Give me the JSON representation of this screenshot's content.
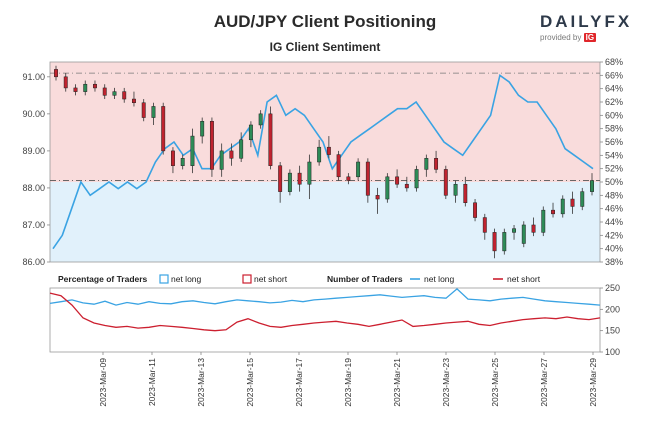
{
  "header": {
    "title": "AUD/JPY Client Positioning",
    "subtitle": "IG Client Sentiment",
    "brand": "DAILYFX",
    "brand_tagline": "provided by",
    "brand_ig": "IG"
  },
  "colors": {
    "net_long": "#3aa3e3",
    "net_short": "#cc1f2f",
    "long_fill": "#e1f1fb",
    "short_fill": "#f9dcdc",
    "candle_up": "#2e8b57",
    "candle_down": "#c0232f"
  },
  "chart_data": [
    {
      "type": "candlestick+line",
      "title": "AUD/JPY Client Positioning",
      "subtitle": "IG Client Sentiment",
      "price_axis": {
        "side": "left",
        "ylim": [
          86.0,
          91.4
        ],
        "ticks": [
          "86.00",
          "87.00",
          "88.00",
          "89.00",
          "90.00",
          "91.00"
        ]
      },
      "sentiment_axis": {
        "side": "right",
        "ylim": [
          38,
          68
        ],
        "ticks": [
          "38%",
          "40%",
          "42%",
          "44%",
          "46%",
          "48%",
          "50%",
          "52%",
          "54%",
          "56%",
          "58%",
          "60%",
          "62%",
          "64%",
          "66%",
          "68%"
        ]
      },
      "reference_lines": {
        "price_high": 91.1,
        "price_current": 88.2
      },
      "candles": [
        {
          "o": 91.2,
          "h": 91.3,
          "l": 90.9,
          "c": 91.0
        },
        {
          "o": 91.0,
          "h": 91.1,
          "l": 90.6,
          "c": 90.7
        },
        {
          "o": 90.7,
          "h": 90.8,
          "l": 90.5,
          "c": 90.6
        },
        {
          "o": 90.6,
          "h": 90.9,
          "l": 90.5,
          "c": 90.8
        },
        {
          "o": 90.8,
          "h": 90.9,
          "l": 90.6,
          "c": 90.7
        },
        {
          "o": 90.7,
          "h": 90.8,
          "l": 90.4,
          "c": 90.5
        },
        {
          "o": 90.5,
          "h": 90.7,
          "l": 90.4,
          "c": 90.6
        },
        {
          "o": 90.6,
          "h": 90.7,
          "l": 90.3,
          "c": 90.4
        },
        {
          "o": 90.4,
          "h": 90.6,
          "l": 90.2,
          "c": 90.3
        },
        {
          "o": 90.3,
          "h": 90.4,
          "l": 89.8,
          "c": 89.9
        },
        {
          "o": 89.9,
          "h": 90.3,
          "l": 89.7,
          "c": 90.2
        },
        {
          "o": 90.2,
          "h": 90.3,
          "l": 88.9,
          "c": 89.0
        },
        {
          "o": 89.0,
          "h": 89.1,
          "l": 88.4,
          "c": 88.6
        },
        {
          "o": 88.6,
          "h": 88.9,
          "l": 88.5,
          "c": 88.8
        },
        {
          "o": 88.6,
          "h": 89.6,
          "l": 88.4,
          "c": 89.4
        },
        {
          "o": 89.4,
          "h": 89.9,
          "l": 89.2,
          "c": 89.8
        },
        {
          "o": 89.8,
          "h": 89.9,
          "l": 88.3,
          "c": 88.5
        },
        {
          "o": 88.5,
          "h": 89.2,
          "l": 88.3,
          "c": 89.0
        },
        {
          "o": 89.0,
          "h": 89.2,
          "l": 88.6,
          "c": 88.8
        },
        {
          "o": 88.8,
          "h": 89.5,
          "l": 88.7,
          "c": 89.3
        },
        {
          "o": 89.3,
          "h": 89.8,
          "l": 89.1,
          "c": 89.7
        },
        {
          "o": 89.7,
          "h": 90.1,
          "l": 89.6,
          "c": 90.0
        },
        {
          "o": 90.0,
          "h": 90.2,
          "l": 88.5,
          "c": 88.6
        },
        {
          "o": 88.6,
          "h": 88.7,
          "l": 87.6,
          "c": 87.9
        },
        {
          "o": 87.9,
          "h": 88.5,
          "l": 87.8,
          "c": 88.4
        },
        {
          "o": 88.4,
          "h": 88.6,
          "l": 87.9,
          "c": 88.1
        },
        {
          "o": 88.1,
          "h": 88.9,
          "l": 87.7,
          "c": 88.7
        },
        {
          "o": 88.7,
          "h": 89.3,
          "l": 88.6,
          "c": 89.1
        },
        {
          "o": 89.1,
          "h": 89.4,
          "l": 88.8,
          "c": 88.9
        },
        {
          "o": 88.9,
          "h": 89.0,
          "l": 88.2,
          "c": 88.3
        },
        {
          "o": 88.3,
          "h": 88.4,
          "l": 88.1,
          "c": 88.2
        },
        {
          "o": 88.3,
          "h": 88.8,
          "l": 88.2,
          "c": 88.7
        },
        {
          "o": 88.7,
          "h": 88.8,
          "l": 87.6,
          "c": 87.8
        },
        {
          "o": 87.8,
          "h": 88.0,
          "l": 87.3,
          "c": 87.7
        },
        {
          "o": 87.7,
          "h": 88.4,
          "l": 87.6,
          "c": 88.3
        },
        {
          "o": 88.3,
          "h": 88.5,
          "l": 88.0,
          "c": 88.1
        },
        {
          "o": 88.1,
          "h": 88.3,
          "l": 87.9,
          "c": 88.0
        },
        {
          "o": 88.0,
          "h": 88.6,
          "l": 87.9,
          "c": 88.5
        },
        {
          "o": 88.5,
          "h": 88.9,
          "l": 88.3,
          "c": 88.8
        },
        {
          "o": 88.8,
          "h": 89.0,
          "l": 88.4,
          "c": 88.5
        },
        {
          "o": 88.5,
          "h": 88.6,
          "l": 87.7,
          "c": 87.8
        },
        {
          "o": 87.8,
          "h": 88.2,
          "l": 87.6,
          "c": 88.1
        },
        {
          "o": 88.1,
          "h": 88.3,
          "l": 87.5,
          "c": 87.6
        },
        {
          "o": 87.6,
          "h": 87.7,
          "l": 87.1,
          "c": 87.2
        },
        {
          "o": 87.2,
          "h": 87.3,
          "l": 86.6,
          "c": 86.8
        },
        {
          "o": 86.8,
          "h": 86.9,
          "l": 86.1,
          "c": 86.3
        },
        {
          "o": 86.3,
          "h": 86.9,
          "l": 86.2,
          "c": 86.8
        },
        {
          "o": 86.8,
          "h": 87.0,
          "l": 86.6,
          "c": 86.9
        },
        {
          "o": 86.5,
          "h": 87.1,
          "l": 86.4,
          "c": 87.0
        },
        {
          "o": 87.0,
          "h": 87.2,
          "l": 86.7,
          "c": 86.8
        },
        {
          "o": 86.8,
          "h": 87.5,
          "l": 86.7,
          "c": 87.4
        },
        {
          "o": 87.4,
          "h": 87.6,
          "l": 87.2,
          "c": 87.3
        },
        {
          "o": 87.3,
          "h": 87.8,
          "l": 87.2,
          "c": 87.7
        },
        {
          "o": 87.7,
          "h": 87.9,
          "l": 87.3,
          "c": 87.5
        },
        {
          "o": 87.5,
          "h": 88.0,
          "l": 87.4,
          "c": 87.9
        },
        {
          "o": 87.9,
          "h": 88.4,
          "l": 87.8,
          "c": 88.2
        }
      ],
      "net_long_pct": [
        40,
        42,
        46,
        50,
        48,
        49,
        50,
        49,
        50,
        49,
        50,
        53,
        55,
        56,
        54,
        55,
        52,
        52,
        54,
        55,
        56,
        58,
        54,
        62,
        63,
        60,
        61,
        60,
        58,
        56,
        52,
        54,
        56,
        57,
        58,
        59,
        60,
        61,
        61,
        62,
        60,
        58,
        56,
        55,
        54,
        56,
        58,
        60,
        66,
        65,
        63,
        62,
        62,
        60,
        58,
        55,
        54,
        53,
        52
      ]
    },
    {
      "type": "line",
      "series": [
        {
          "name": "net long",
          "values": [
            214,
            218,
            222,
            215,
            212,
            219,
            210,
            216,
            212,
            218,
            214,
            213,
            218,
            220,
            216,
            213,
            218,
            222,
            220,
            218,
            215,
            217,
            221,
            218,
            222,
            224,
            226,
            228,
            230,
            232,
            234,
            231,
            228,
            230,
            232,
            228,
            226,
            248,
            224,
            222,
            220,
            224,
            226,
            228,
            224,
            220,
            218,
            216,
            214,
            212,
            210
          ]
        },
        {
          "name": "net short",
          "values": [
            238,
            232,
            210,
            180,
            168,
            162,
            158,
            160,
            156,
            158,
            162,
            160,
            158,
            155,
            152,
            150,
            152,
            170,
            178,
            168,
            160,
            158,
            162,
            165,
            168,
            170,
            172,
            168,
            165,
            160,
            165,
            170,
            175,
            160,
            162,
            165,
            168,
            170,
            172,
            165,
            162,
            168,
            172,
            176,
            178,
            180,
            178,
            182,
            178,
            176,
            180
          ]
        }
      ],
      "ylim": [
        100,
        250
      ],
      "ticks": [
        "100",
        "150",
        "200",
        "250"
      ]
    }
  ],
  "lower_legend": {
    "pct_title": "Percentage of Traders",
    "net_long": "net long",
    "net_short": "net short",
    "num_title": "Number of Traders",
    "num_net_long": "net long",
    "num_net_short": "net short"
  },
  "x_axis": {
    "labels": [
      "2023-Mar-09",
      "2023-Mar-11",
      "2023-Mar-13",
      "2023-Mar-15",
      "2023-Mar-17",
      "2023-Mar-19",
      "2023-Mar-21",
      "2023-Mar-23",
      "2023-Mar-25",
      "2023-Mar-27",
      "2023-Mar-29"
    ]
  }
}
